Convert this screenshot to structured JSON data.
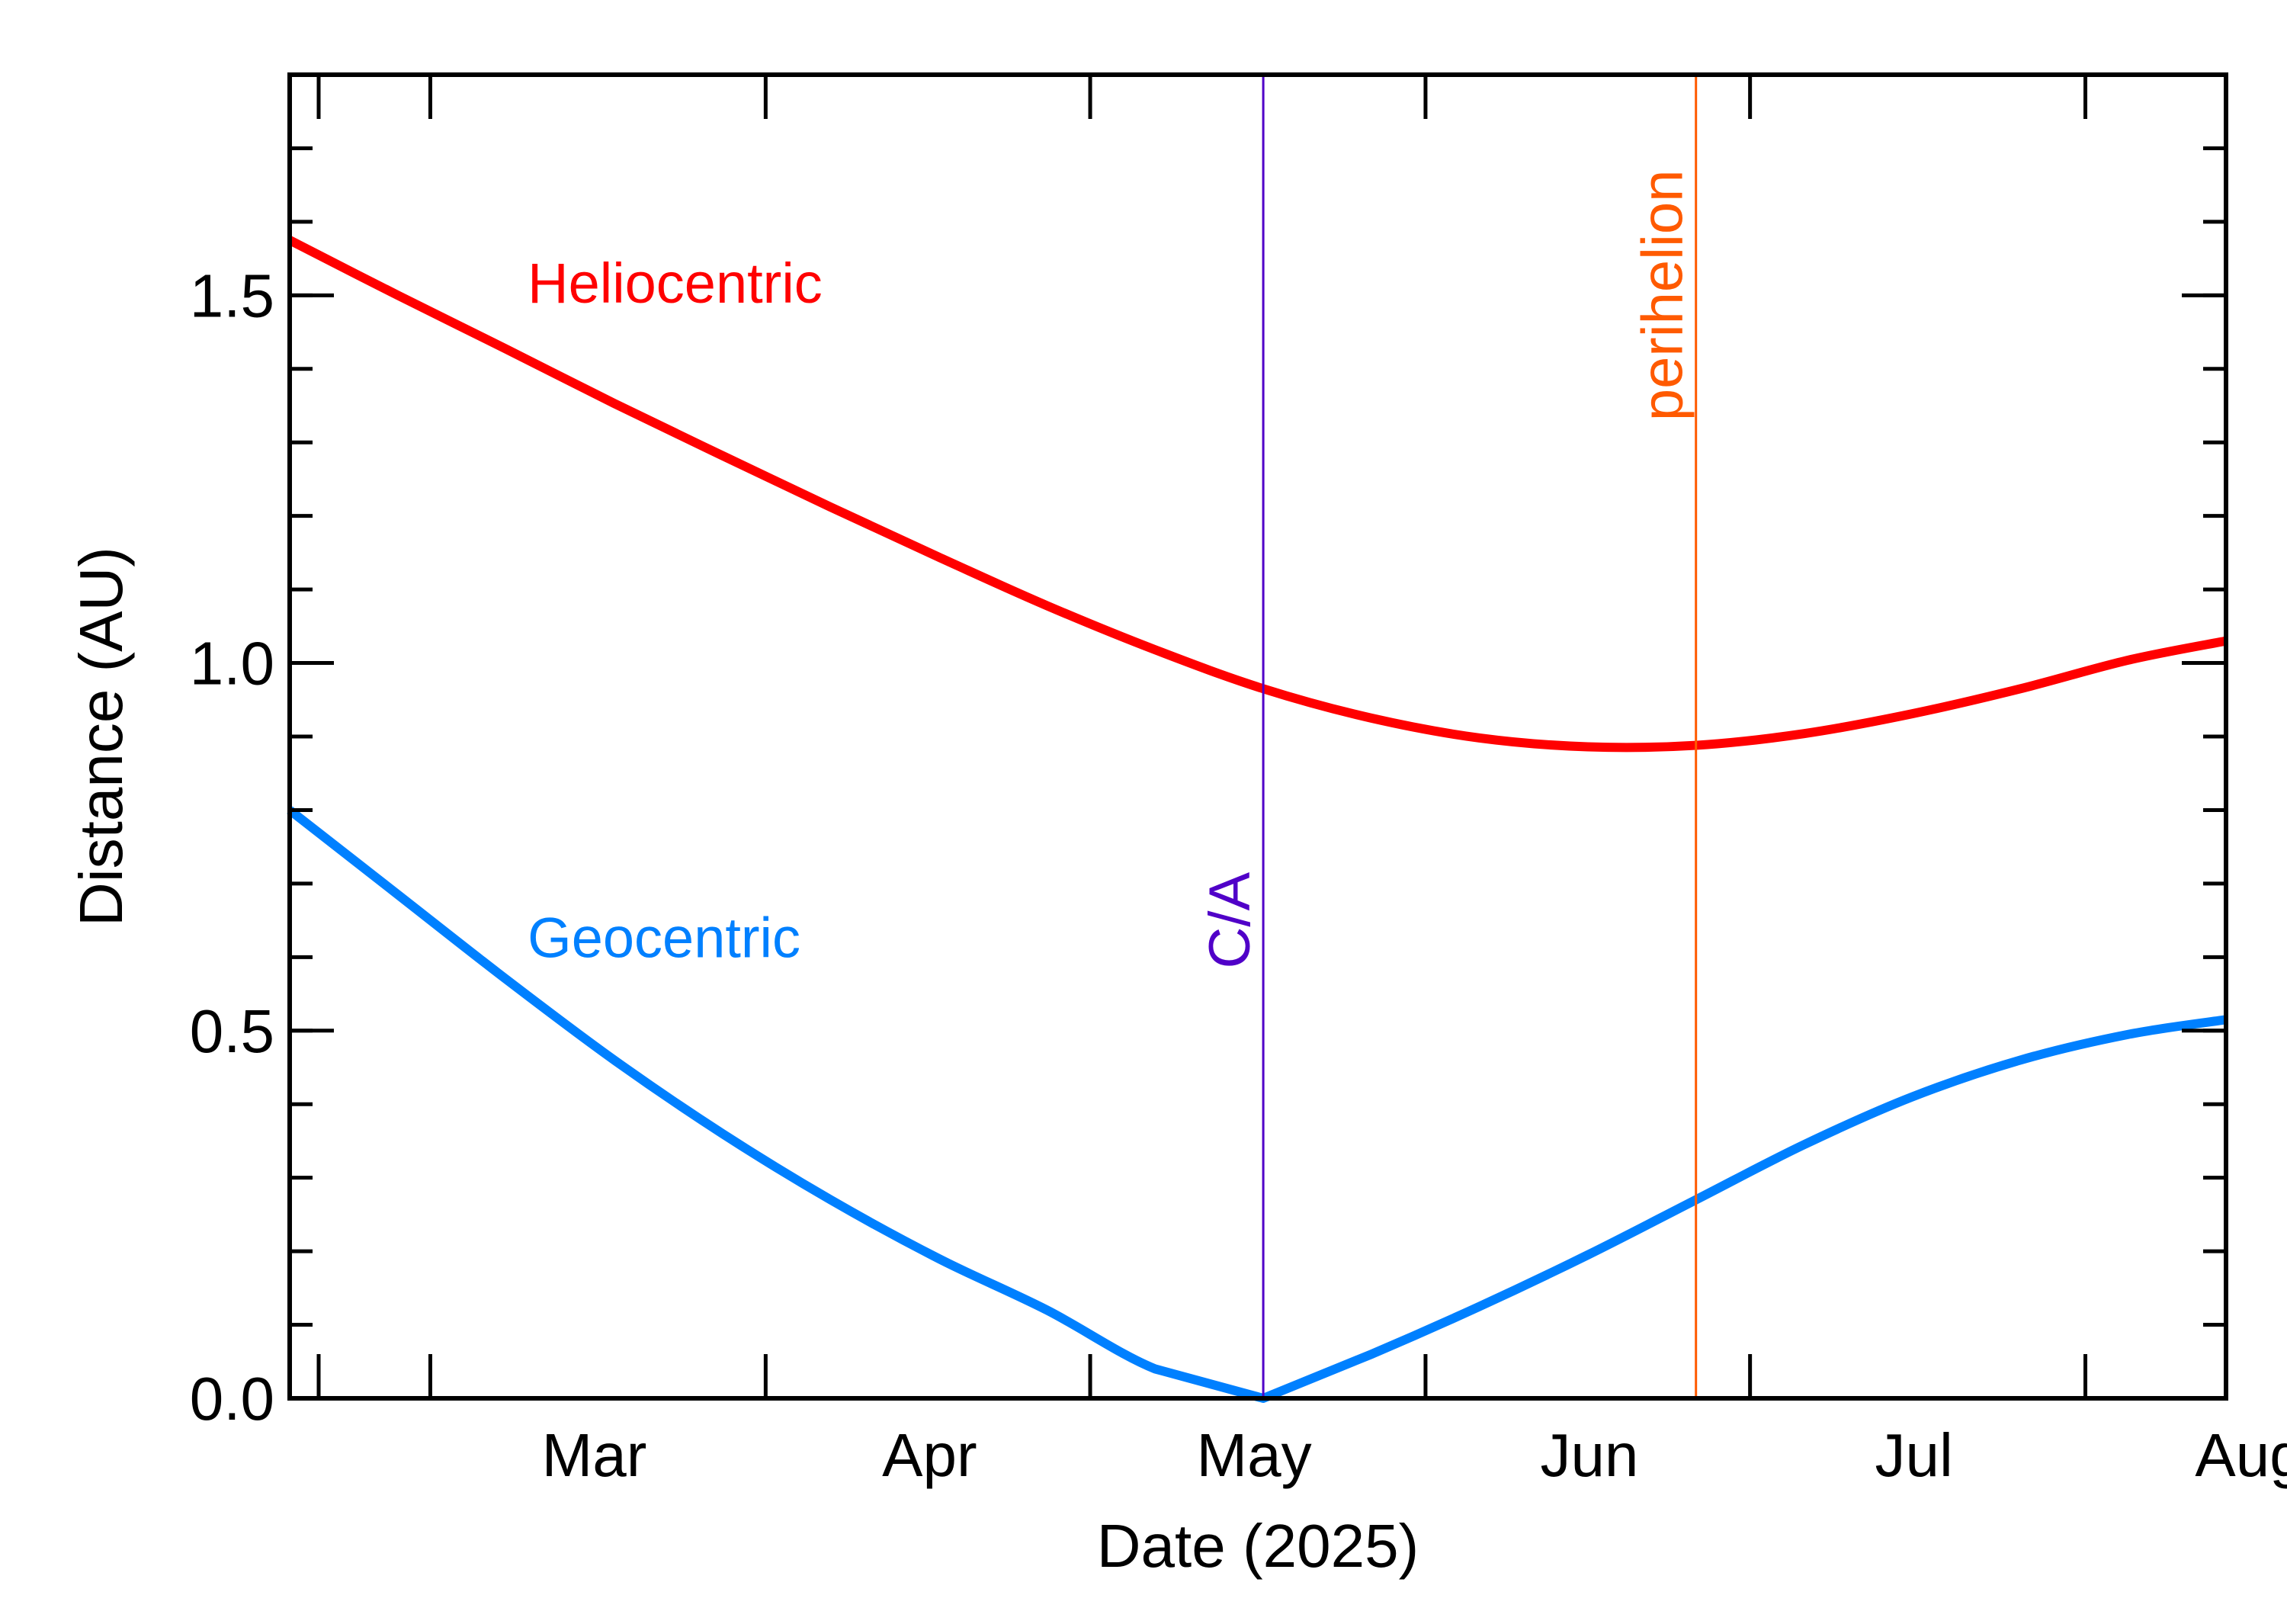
{
  "chart_data": {
    "type": "line",
    "title": "",
    "xlabel": "Date (2025)",
    "ylabel": "Distance (AU)",
    "xlim": [
      "2025-02-16",
      "2025-08-14"
    ],
    "ylim": [
      0.0,
      1.8
    ],
    "xticks": [
      {
        "date": "2025-03-01",
        "label": "Mar"
      },
      {
        "date": "2025-04-01",
        "label": "Apr"
      },
      {
        "date": "2025-05-01",
        "label": "May"
      },
      {
        "date": "2025-06-01",
        "label": "Jun"
      },
      {
        "date": "2025-07-01",
        "label": "Jul"
      },
      {
        "date": "2025-08-01",
        "label": "Aug"
      }
    ],
    "yticks": [
      {
        "value": 0.0,
        "label": "0.0"
      },
      {
        "value": 0.5,
        "label": "0.5"
      },
      {
        "value": 1.0,
        "label": "1.0"
      },
      {
        "value": 1.5,
        "label": "1.5"
      }
    ],
    "y_minor_step": 0.1,
    "grid": false,
    "series": [
      {
        "name": "Heliocentric",
        "color": "#ff0000",
        "points": [
          [
            "2025-02-16",
            1.575
          ],
          [
            "2025-02-26",
            1.5
          ],
          [
            "2025-03-08",
            1.427
          ],
          [
            "2025-03-18",
            1.353
          ],
          [
            "2025-03-28",
            1.282
          ],
          [
            "2025-04-07",
            1.212
          ],
          [
            "2025-04-17",
            1.144
          ],
          [
            "2025-04-27",
            1.078
          ],
          [
            "2025-05-07",
            1.018
          ],
          [
            "2025-05-17",
            0.965
          ],
          [
            "2025-05-27",
            0.925
          ],
          [
            "2025-06-06",
            0.898
          ],
          [
            "2025-06-16",
            0.886
          ],
          [
            "2025-06-26",
            0.888
          ],
          [
            "2025-07-06",
            0.904
          ],
          [
            "2025-07-16",
            0.931
          ],
          [
            "2025-07-26",
            0.965
          ],
          [
            "2025-08-05",
            1.004
          ],
          [
            "2025-08-14",
            1.03
          ]
        ]
      },
      {
        "name": "Geocentric",
        "color": "#0080ff",
        "points": [
          [
            "2025-02-16",
            0.8
          ],
          [
            "2025-02-26",
            0.685
          ],
          [
            "2025-03-08",
            0.57
          ],
          [
            "2025-03-18",
            0.46
          ],
          [
            "2025-03-28",
            0.36
          ],
          [
            "2025-04-07",
            0.27
          ],
          [
            "2025-04-17",
            0.19
          ],
          [
            "2025-04-27",
            0.12
          ],
          [
            "2025-05-07",
            0.04
          ],
          [
            "2025-05-17",
            0.0
          ],
          [
            "2025-05-27",
            0.06
          ],
          [
            "2025-06-06",
            0.125
          ],
          [
            "2025-06-16",
            0.195
          ],
          [
            "2025-06-26",
            0.27
          ],
          [
            "2025-07-06",
            0.345
          ],
          [
            "2025-07-16",
            0.41
          ],
          [
            "2025-07-26",
            0.46
          ],
          [
            "2025-08-05",
            0.495
          ],
          [
            "2025-08-14",
            0.515
          ]
        ]
      }
    ],
    "markers": [
      {
        "label": "C/A",
        "date": "2025-05-17",
        "color": "#5000c8",
        "label_y": 0.65
      },
      {
        "label": "perihelion",
        "date": "2025-06-26",
        "color": "#ff5a00",
        "label_y": 1.5
      }
    ],
    "annotations": [
      {
        "text": "Heliocentric",
        "date": "2025-03-10",
        "y": 1.49,
        "color": "#ff0000"
      },
      {
        "text": "Geocentric",
        "date": "2025-03-10",
        "y": 0.6,
        "color": "#0080ff"
      }
    ]
  }
}
